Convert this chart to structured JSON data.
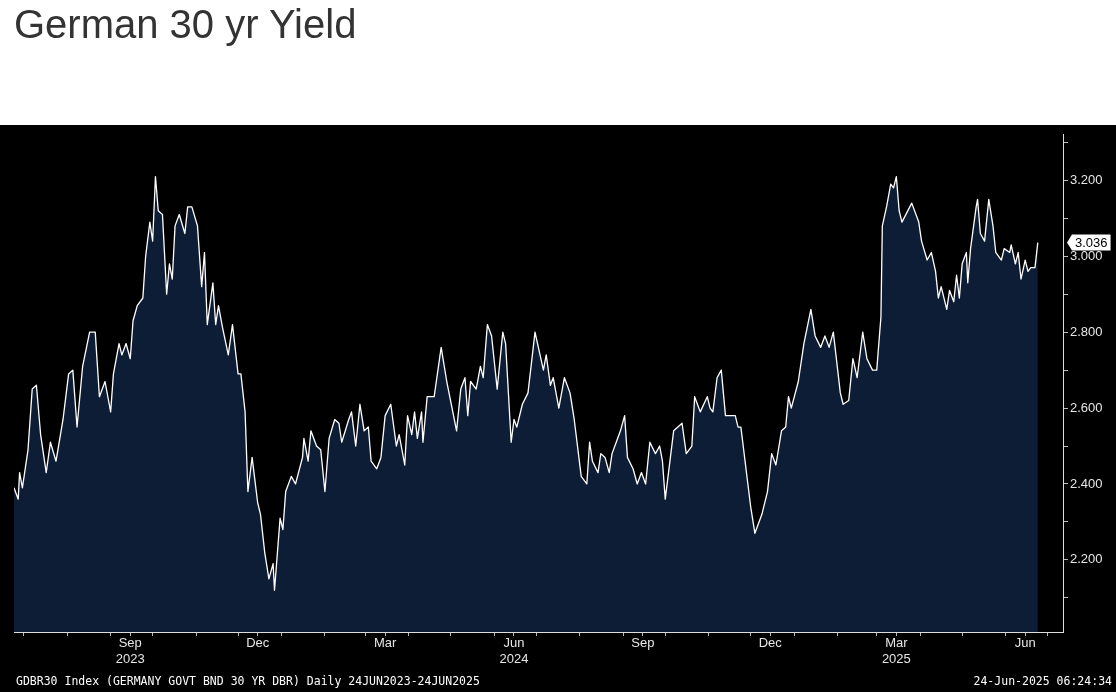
{
  "chart_data": {
    "type": "area",
    "title": "German 30 yr Yield",
    "annotations": [
      {
        "text": "3.036",
        "x": "2025-06-24",
        "y": 3.036
      },
      "GDBR30 Index (GERMANY GOVT BND 30 YR DBR)  Daily 24JUN2023-24JUN2025",
      "24-Jun-2025 06:24:34"
    ],
    "xlim": [
      "2023-06-24",
      "2025-07-12"
    ],
    "xticks": [
      {
        "value": "2023-07-01",
        "label": null
      },
      {
        "value": "2023-08-01",
        "label": null
      },
      {
        "value": "2023-09-01",
        "label": null
      },
      {
        "value": "2023-09-15",
        "label": "Sep\n2023"
      },
      {
        "value": "2023-10-01",
        "label": null
      },
      {
        "value": "2023-11-01",
        "label": null
      },
      {
        "value": "2023-12-01",
        "label": null
      },
      {
        "value": "2023-12-15",
        "label": "Dec"
      },
      {
        "value": "2024-01-01",
        "label": null
      },
      {
        "value": "2024-02-01",
        "label": null
      },
      {
        "value": "2024-03-01",
        "label": null
      },
      {
        "value": "2024-03-15",
        "label": "Mar"
      },
      {
        "value": "2024-04-01",
        "label": null
      },
      {
        "value": "2024-05-01",
        "label": null
      },
      {
        "value": "2024-06-01",
        "label": null
      },
      {
        "value": "2024-06-15",
        "label": "Jun\n2024"
      },
      {
        "value": "2024-07-01",
        "label": null
      },
      {
        "value": "2024-08-01",
        "label": null
      },
      {
        "value": "2024-09-01",
        "label": null
      },
      {
        "value": "2024-09-15",
        "label": "Sep"
      },
      {
        "value": "2024-10-01",
        "label": null
      },
      {
        "value": "2024-11-01",
        "label": null
      },
      {
        "value": "2024-12-01",
        "label": null
      },
      {
        "value": "2024-12-15",
        "label": "Dec"
      },
      {
        "value": "2025-01-01",
        "label": null
      },
      {
        "value": "2025-02-01",
        "label": null
      },
      {
        "value": "2025-03-01",
        "label": null
      },
      {
        "value": "2025-03-15",
        "label": "Mar\n2025"
      },
      {
        "value": "2025-04-01",
        "label": null
      },
      {
        "value": "2025-05-01",
        "label": null
      },
      {
        "value": "2025-06-01",
        "label": null
      },
      {
        "value": "2025-06-15",
        "label": "Jun"
      },
      {
        "value": "2025-07-01",
        "label": null
      }
    ],
    "ylim": [
      2.01,
      3.32
    ],
    "yticks": [
      {
        "value": 2.1,
        "label": null
      },
      {
        "value": 2.2,
        "label": "2.200"
      },
      {
        "value": 2.3,
        "label": null
      },
      {
        "value": 2.4,
        "label": "2.400"
      },
      {
        "value": 2.5,
        "label": null
      },
      {
        "value": 2.6,
        "label": "2.600"
      },
      {
        "value": 2.7,
        "label": null
      },
      {
        "value": 2.8,
        "label": "2.800"
      },
      {
        "value": 2.9,
        "label": null
      },
      {
        "value": 3.0,
        "label": "3.000"
      },
      {
        "value": 3.1,
        "label": null
      },
      {
        "value": 3.2,
        "label": "3.200"
      },
      {
        "value": 3.3,
        "label": null
      }
    ],
    "series": [
      {
        "color": "#0e1d36",
        "x": [
          "2023-06-24",
          "2023-06-27",
          "2023-06-28",
          "2023-06-30",
          "2023-07-04",
          "2023-07-07",
          "2023-07-10",
          "2023-07-13",
          "2023-07-17",
          "2023-07-20",
          "2023-07-24",
          "2023-07-29",
          "2023-08-02",
          "2023-08-05",
          "2023-08-08",
          "2023-08-12",
          "2023-08-17",
          "2023-08-21",
          "2023-08-24",
          "2023-08-28",
          "2023-09-01",
          "2023-09-03",
          "2023-09-07",
          "2023-09-09",
          "2023-09-12",
          "2023-09-15",
          "2023-09-17",
          "2023-09-20",
          "2023-09-24",
          "2023-09-26",
          "2023-09-29",
          "2023-10-01",
          "2023-10-03",
          "2023-10-05",
          "2023-10-08",
          "2023-10-11",
          "2023-10-13",
          "2023-10-15",
          "2023-10-17",
          "2023-10-20",
          "2023-10-24",
          "2023-10-26",
          "2023-10-29",
          "2023-11-02",
          "2023-11-05",
          "2023-11-07",
          "2023-11-09",
          "2023-11-13",
          "2023-11-15",
          "2023-11-17",
          "2023-11-20",
          "2023-11-24",
          "2023-11-27",
          "2023-12-01",
          "2023-12-03",
          "2023-12-06",
          "2023-12-08",
          "2023-12-11",
          "2023-12-15",
          "2023-12-17",
          "2023-12-20",
          "2023-12-23",
          "2023-12-26",
          "2023-12-27",
          "2023-12-31",
          "2024-01-02",
          "2024-01-04",
          "2024-01-08",
          "2024-01-11",
          "2024-01-16",
          "2024-01-17",
          "2024-01-20",
          "2024-01-22",
          "2024-01-26",
          "2024-01-29",
          "2024-02-01",
          "2024-02-04",
          "2024-02-08",
          "2024-02-11",
          "2024-02-13",
          "2024-02-18",
          "2024-02-20",
          "2024-02-23",
          "2024-02-26",
          "2024-02-29",
          "2024-03-03",
          "2024-03-05",
          "2024-03-09",
          "2024-03-12",
          "2024-03-15",
          "2024-03-19",
          "2024-03-23",
          "2024-03-25",
          "2024-03-29",
          "2024-03-31",
          "2024-04-03",
          "2024-04-05",
          "2024-04-07",
          "2024-04-10",
          "2024-04-11",
          "2024-04-14",
          "2024-04-19",
          "2024-04-24",
          "2024-04-28",
          "2024-05-05",
          "2024-05-08",
          "2024-05-11",
          "2024-05-13",
          "2024-05-15",
          "2024-05-19",
          "2024-05-22",
          "2024-05-24",
          "2024-05-27",
          "2024-05-30",
          "2024-06-03",
          "2024-06-07",
          "2024-06-09",
          "2024-06-13",
          "2024-06-15",
          "2024-06-17",
          "2024-06-21",
          "2024-06-25",
          "2024-06-30",
          "2024-07-03",
          "2024-07-06",
          "2024-07-08",
          "2024-07-11",
          "2024-07-13",
          "2024-07-17",
          "2024-07-21",
          "2024-07-25",
          "2024-07-28",
          "2024-08-02",
          "2024-08-06",
          "2024-08-08",
          "2024-08-10",
          "2024-08-14",
          "2024-08-16",
          "2024-08-19",
          "2024-08-22",
          "2024-08-24",
          "2024-08-27",
          "2024-08-30",
          "2024-09-02",
          "2024-09-04",
          "2024-09-08",
          "2024-09-11",
          "2024-09-14",
          "2024-09-17",
          "2024-09-20",
          "2024-09-24",
          "2024-09-27",
          "2024-09-29",
          "2024-10-01",
          "2024-10-07",
          "2024-10-13",
          "2024-10-16",
          "2024-10-20",
          "2024-10-22",
          "2024-10-26",
          "2024-10-31",
          "2024-11-02",
          "2024-11-04",
          "2024-11-07",
          "2024-11-10",
          "2024-11-13",
          "2024-11-20",
          "2024-11-22",
          "2024-11-24",
          "2024-11-29",
          "2024-12-01",
          "2024-12-04",
          "2024-12-09",
          "2024-12-13",
          "2024-12-16",
          "2024-12-19",
          "2024-12-23",
          "2024-12-26",
          "2024-12-28",
          "2024-12-30",
          "2025-01-04",
          "2025-01-08",
          "2025-01-13",
          "2025-01-16",
          "2025-01-20",
          "2025-01-23",
          "2025-01-26",
          "2025-01-29",
          "2025-02-03",
          "2025-02-05",
          "2025-02-09",
          "2025-02-12",
          "2025-02-15",
          "2025-02-19",
          "2025-02-22",
          "2025-02-26",
          "2025-03-01",
          "2025-03-04",
          "2025-03-05",
          "2025-03-08",
          "2025-03-11",
          "2025-03-13",
          "2025-03-15",
          "2025-03-17",
          "2025-03-19",
          "2025-03-26",
          "2025-03-31",
          "2025-04-02",
          "2025-04-06",
          "2025-04-09",
          "2025-04-12",
          "2025-04-14",
          "2025-04-16",
          "2025-04-20",
          "2025-04-22",
          "2025-04-25",
          "2025-04-27",
          "2025-04-29",
          "2025-05-01",
          "2025-05-04",
          "2025-05-05",
          "2025-05-07",
          "2025-05-11",
          "2025-05-12",
          "2025-05-14",
          "2025-05-17",
          "2025-05-20",
          "2025-05-23",
          "2025-05-25",
          "2025-05-29",
          "2025-05-31",
          "2025-06-04",
          "2025-06-05",
          "2025-06-08",
          "2025-06-10",
          "2025-06-12",
          "2025-06-15",
          "2025-06-17",
          "2025-06-19",
          "2025-06-22",
          "2025-06-24"
        ],
        "values": [
          2.39,
          2.36,
          2.43,
          2.39,
          2.49,
          2.65,
          2.66,
          2.53,
          2.43,
          2.51,
          2.46,
          2.57,
          2.69,
          2.7,
          2.55,
          2.71,
          2.8,
          2.8,
          2.63,
          2.67,
          2.59,
          2.69,
          2.77,
          2.74,
          2.77,
          2.73,
          2.83,
          2.87,
          2.89,
          3.0,
          3.09,
          3.04,
          3.21,
          3.12,
          3.11,
          2.9,
          2.98,
          2.94,
          3.08,
          3.11,
          3.06,
          3.13,
          3.13,
          3.08,
          2.92,
          3.01,
          2.82,
          2.93,
          2.82,
          2.87,
          2.81,
          2.74,
          2.82,
          2.69,
          2.69,
          2.59,
          2.38,
          2.47,
          2.35,
          2.32,
          2.22,
          2.15,
          2.19,
          2.12,
          2.31,
          2.28,
          2.38,
          2.42,
          2.4,
          2.47,
          2.52,
          2.46,
          2.54,
          2.5,
          2.49,
          2.38,
          2.52,
          2.57,
          2.56,
          2.51,
          2.57,
          2.59,
          2.5,
          2.61,
          2.54,
          2.55,
          2.46,
          2.44,
          2.47,
          2.58,
          2.61,
          2.5,
          2.53,
          2.45,
          2.58,
          2.53,
          2.59,
          2.52,
          2.59,
          2.51,
          2.63,
          2.63,
          2.76,
          2.67,
          2.54,
          2.65,
          2.68,
          2.58,
          2.67,
          2.65,
          2.71,
          2.68,
          2.82,
          2.79,
          2.65,
          2.8,
          2.77,
          2.51,
          2.57,
          2.55,
          2.61,
          2.64,
          2.8,
          2.75,
          2.7,
          2.74,
          2.66,
          2.68,
          2.6,
          2.68,
          2.64,
          2.57,
          2.42,
          2.4,
          2.51,
          2.46,
          2.43,
          2.48,
          2.47,
          2.43,
          2.48,
          2.51,
          2.54,
          2.58,
          2.47,
          2.44,
          2.4,
          2.43,
          2.4,
          2.51,
          2.48,
          2.5,
          2.46,
          2.36,
          2.54,
          2.56,
          2.48,
          2.5,
          2.63,
          2.59,
          2.63,
          2.6,
          2.59,
          2.68,
          2.7,
          2.58,
          2.58,
          2.55,
          2.55,
          2.4,
          2.34,
          2.27,
          2.32,
          2.38,
          2.48,
          2.45,
          2.54,
          2.55,
          2.63,
          2.6,
          2.67,
          2.77,
          2.86,
          2.79,
          2.76,
          2.79,
          2.76,
          2.8,
          2.64,
          2.61,
          2.62,
          2.73,
          2.68,
          2.8,
          2.73,
          2.7,
          2.7,
          2.84,
          3.08,
          3.13,
          3.19,
          3.18,
          3.21,
          3.12,
          3.09,
          3.14,
          3.09,
          3.04,
          2.99,
          3.01,
          2.96,
          2.89,
          2.92,
          2.86,
          2.91,
          2.88,
          2.95,
          2.89,
          2.98,
          3.01,
          2.93,
          3.02,
          3.13,
          3.15,
          3.06,
          3.04,
          3.15,
          3.08,
          3.01,
          2.99,
          3.02,
          3.01,
          3.03,
          2.98,
          3.01,
          2.94,
          2.99,
          2.96,
          2.97,
          2.97,
          3.036
        ]
      }
    ]
  }
}
